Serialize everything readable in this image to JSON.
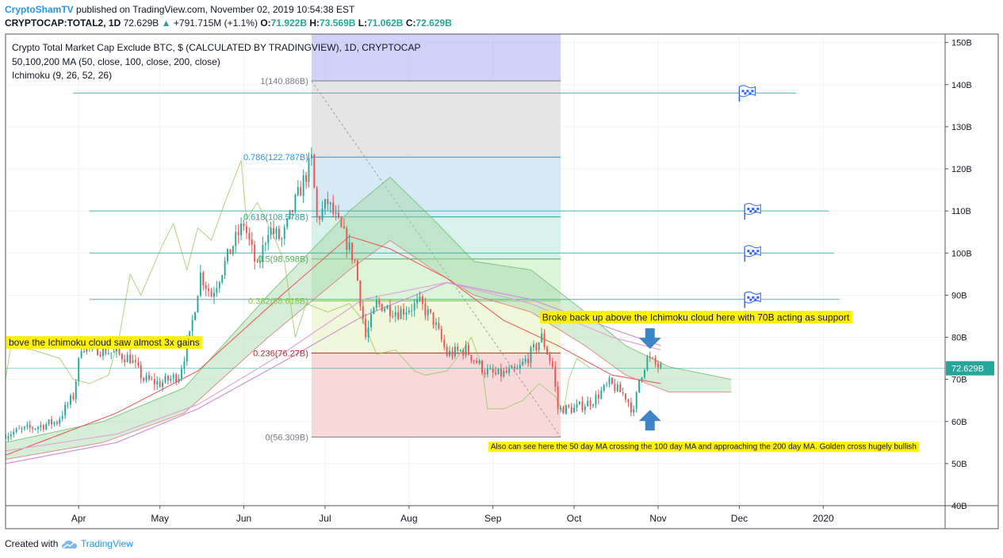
{
  "header": {
    "author": "CryptoShamTV",
    "published_text": "published on TradingView.com, November 02, 2019 10:54:38 EST",
    "symbol": "CRYPTOCAP:TOTAL2, 1D",
    "last": "72.629B",
    "change": "+791.715M (+1.1%)",
    "o_label": "O:",
    "o": "71.922B",
    "h_label": "H:",
    "h": "73.569B",
    "l_label": "L:",
    "l": "71.062B",
    "c_label": "C:",
    "c": "72.629B"
  },
  "footer": {
    "created_with": "Created with",
    "brand": "TradingView"
  },
  "colors": {
    "up": "#26a69a",
    "down": "#ef5350",
    "grid": "#f0f3fa",
    "axis": "#555555",
    "fib_bg": "#9c9cf0",
    "price_tag": "#26a69a",
    "arrow": "#3d85c6",
    "note_bg": "#fff200"
  },
  "chart_data": {
    "type": "candlestick",
    "title": "Crypto Total Market Cap Exclude BTC, $ (CALCULATED BY TRADINGVIEW), 1D, CRYPTOCAP",
    "indicators": [
      "50,100,200 MA (50, close, 100, close, 200, close)",
      "Ichimoku (9, 26, 52, 26)"
    ],
    "ylim": [
      40,
      152
    ],
    "y_ticks": [
      40,
      50,
      60,
      70,
      80,
      90,
      100,
      110,
      120,
      130,
      140,
      150
    ],
    "y_tick_labels": [
      "40B",
      "50B",
      "60B",
      "70B",
      "80B",
      "90B",
      "100B",
      "110B",
      "120B",
      "130B",
      "140B",
      "150B"
    ],
    "x_ticks": [
      {
        "label": "Apr",
        "date": "2019-04-01"
      },
      {
        "label": "May",
        "date": "2019-05-01"
      },
      {
        "label": "Jun",
        "date": "2019-06-01"
      },
      {
        "label": "Jul",
        "date": "2019-07-01"
      },
      {
        "label": "Aug",
        "date": "2019-08-01"
      },
      {
        "label": "Sep",
        "date": "2019-09-01"
      },
      {
        "label": "Oct",
        "date": "2019-10-01"
      },
      {
        "label": "Nov",
        "date": "2019-11-01"
      },
      {
        "label": "Dec",
        "date": "2019-12-01"
      },
      {
        "label": "2020",
        "date": "2020-01-01"
      }
    ],
    "xlim": [
      "2019-03-05",
      "2020-02-15"
    ],
    "last_price": {
      "value": 72.629,
      "label": "72.629B"
    },
    "price_path": [
      [
        "2019-03-05",
        57
      ],
      [
        "2019-03-15",
        58.5
      ],
      [
        "2019-03-24",
        60
      ],
      [
        "2019-03-30",
        66
      ],
      [
        "2019-04-02",
        78
      ],
      [
        "2019-04-10",
        77
      ],
      [
        "2019-04-20",
        75
      ],
      [
        "2019-04-25",
        70
      ],
      [
        "2019-05-01",
        69
      ],
      [
        "2019-05-08",
        71
      ],
      [
        "2019-05-12",
        80
      ],
      [
        "2019-05-16",
        95
      ],
      [
        "2019-05-20",
        90
      ],
      [
        "2019-05-28",
        102
      ],
      [
        "2019-06-01",
        107
      ],
      [
        "2019-06-06",
        96
      ],
      [
        "2019-06-10",
        106
      ],
      [
        "2019-06-15",
        103
      ],
      [
        "2019-06-20",
        112
      ],
      [
        "2019-06-26",
        122
      ],
      [
        "2019-06-28",
        108
      ],
      [
        "2019-07-02",
        112
      ],
      [
        "2019-07-08",
        104
      ],
      [
        "2019-07-12",
        98
      ],
      [
        "2019-07-16",
        80
      ],
      [
        "2019-07-20",
        88
      ],
      [
        "2019-07-28",
        86
      ],
      [
        "2019-08-05",
        88
      ],
      [
        "2019-08-10",
        84
      ],
      [
        "2019-08-15",
        76
      ],
      [
        "2019-08-22",
        77
      ],
      [
        "2019-08-29",
        72
      ],
      [
        "2019-09-02",
        71
      ],
      [
        "2019-09-10",
        72
      ],
      [
        "2019-09-16",
        77
      ],
      [
        "2019-09-19",
        80
      ],
      [
        "2019-09-23",
        73
      ],
      [
        "2019-09-25",
        63
      ],
      [
        "2019-10-01",
        63
      ],
      [
        "2019-10-08",
        65
      ],
      [
        "2019-10-14",
        69
      ],
      [
        "2019-10-20",
        66
      ],
      [
        "2019-10-23",
        62
      ],
      [
        "2019-10-25",
        70
      ],
      [
        "2019-10-28",
        75
      ],
      [
        "2019-11-02",
        72.629
      ]
    ],
    "ma50_path": [
      [
        "2019-03-05",
        52
      ],
      [
        "2019-04-15",
        62
      ],
      [
        "2019-05-15",
        72
      ],
      [
        "2019-06-15",
        90
      ],
      [
        "2019-07-10",
        104
      ],
      [
        "2019-07-25",
        101
      ],
      [
        "2019-08-15",
        94
      ],
      [
        "2019-09-05",
        84
      ],
      [
        "2019-09-25",
        78
      ],
      [
        "2019-10-15",
        71
      ],
      [
        "2019-11-02",
        69
      ]
    ],
    "ma100_path": [
      [
        "2019-03-05",
        53
      ],
      [
        "2019-04-15",
        57
      ],
      [
        "2019-05-15",
        64
      ],
      [
        "2019-06-15",
        76
      ],
      [
        "2019-07-15",
        89
      ],
      [
        "2019-08-15",
        93
      ],
      [
        "2019-09-15",
        88
      ],
      [
        "2019-10-15",
        80
      ],
      [
        "2019-11-02",
        77
      ]
    ],
    "ma200_path": [
      [
        "2019-03-05",
        50
      ],
      [
        "2019-04-15",
        55
      ],
      [
        "2019-05-15",
        63
      ],
      [
        "2019-06-15",
        74
      ],
      [
        "2019-07-15",
        85
      ],
      [
        "2019-08-15",
        93
      ],
      [
        "2019-09-15",
        89
      ],
      [
        "2019-10-15",
        82
      ],
      [
        "2019-11-02",
        78
      ]
    ],
    "cloud_upper": [
      [
        "2019-03-05",
        55
      ],
      [
        "2019-04-10",
        60
      ],
      [
        "2019-05-10",
        68
      ],
      [
        "2019-06-10",
        90
      ],
      [
        "2019-07-10",
        110
      ],
      [
        "2019-07-25",
        118
      ],
      [
        "2019-08-10",
        108
      ],
      [
        "2019-08-25",
        98
      ],
      [
        "2019-09-15",
        96
      ],
      [
        "2019-10-05",
        86
      ],
      [
        "2019-10-20",
        78
      ],
      [
        "2019-11-05",
        73
      ],
      [
        "2019-11-28",
        70
      ]
    ],
    "cloud_lower": [
      [
        "2019-03-05",
        51
      ],
      [
        "2019-04-10",
        55
      ],
      [
        "2019-05-10",
        62
      ],
      [
        "2019-06-10",
        80
      ],
      [
        "2019-07-10",
        96
      ],
      [
        "2019-07-25",
        103
      ],
      [
        "2019-08-10",
        96
      ],
      [
        "2019-08-25",
        90
      ],
      [
        "2019-09-15",
        86
      ],
      [
        "2019-10-05",
        78
      ],
      [
        "2019-10-20",
        71
      ],
      [
        "2019-11-05",
        67
      ],
      [
        "2019-11-28",
        67
      ]
    ],
    "fibonacci": {
      "start_date": "2019-06-26",
      "end_date": "2019-09-26",
      "high": 140.886,
      "low": 56.309,
      "levels": [
        {
          "ratio": 1,
          "value": 140.886,
          "label": "1(140.886B)",
          "color": "#787b86",
          "fill": "#e0e0e0"
        },
        {
          "ratio": 0.786,
          "value": 122.787,
          "label": "0.786(122.787B)",
          "color": "#2196f3",
          "fill": "#cfe6f5"
        },
        {
          "ratio": 0.618,
          "value": 108.578,
          "label": "0.618(108.578B)",
          "color": "#26a69a",
          "fill": "#cff0e6"
        },
        {
          "ratio": 0.5,
          "value": 98.598,
          "label": "0.5(98.598B)",
          "color": "#4caf50",
          "fill": "#d6f3d2"
        },
        {
          "ratio": 0.382,
          "value": 88.618,
          "label": "0.382(88.618B)",
          "color": "#8bc34a",
          "fill": "#edf6d3"
        },
        {
          "ratio": 0.236,
          "value": 76.27,
          "label": "0.236(76.27B)",
          "color": "#c62828",
          "fill": "#f6d2d2"
        },
        {
          "ratio": 0,
          "value": 56.309,
          "label": "0(56.309B)",
          "color": "#787b86",
          "fill": null
        }
      ]
    },
    "target_lines": [
      {
        "value": 138,
        "start": "2019-03-30",
        "end": "2019-12-22"
      },
      {
        "value": 110,
        "start": "2019-04-05",
        "end": "2020-01-03"
      },
      {
        "value": 100,
        "start": "2019-04-05",
        "end": "2020-01-05"
      },
      {
        "value": 89,
        "start": "2019-04-05",
        "end": "2020-01-07"
      }
    ],
    "flags": [
      {
        "value": 138,
        "date": "2019-12-01"
      },
      {
        "value": 110,
        "date": "2019-12-03"
      },
      {
        "value": 100,
        "date": "2019-12-03"
      },
      {
        "value": 89,
        "date": "2019-12-03"
      }
    ],
    "annotations": [
      {
        "text": "bove the Ichimoku cloud saw almost 3x gains",
        "date": "2019-03-05",
        "value": 78
      },
      {
        "text": "Broke back up above the Ichimoku cloud here with 70B acting as support",
        "date": "2019-09-18",
        "value": 84
      },
      {
        "text": "Also can see here the 50 day MA crossing the 100 day MA and approaching the 200 day MA. Golden cross hugely bullish",
        "date": "2019-08-30",
        "value": 53.5
      }
    ],
    "arrows": [
      {
        "direction": "down",
        "date": "2019-10-29",
        "value": 78
      },
      {
        "direction": "up",
        "date": "2019-10-29",
        "value": 62
      }
    ]
  }
}
